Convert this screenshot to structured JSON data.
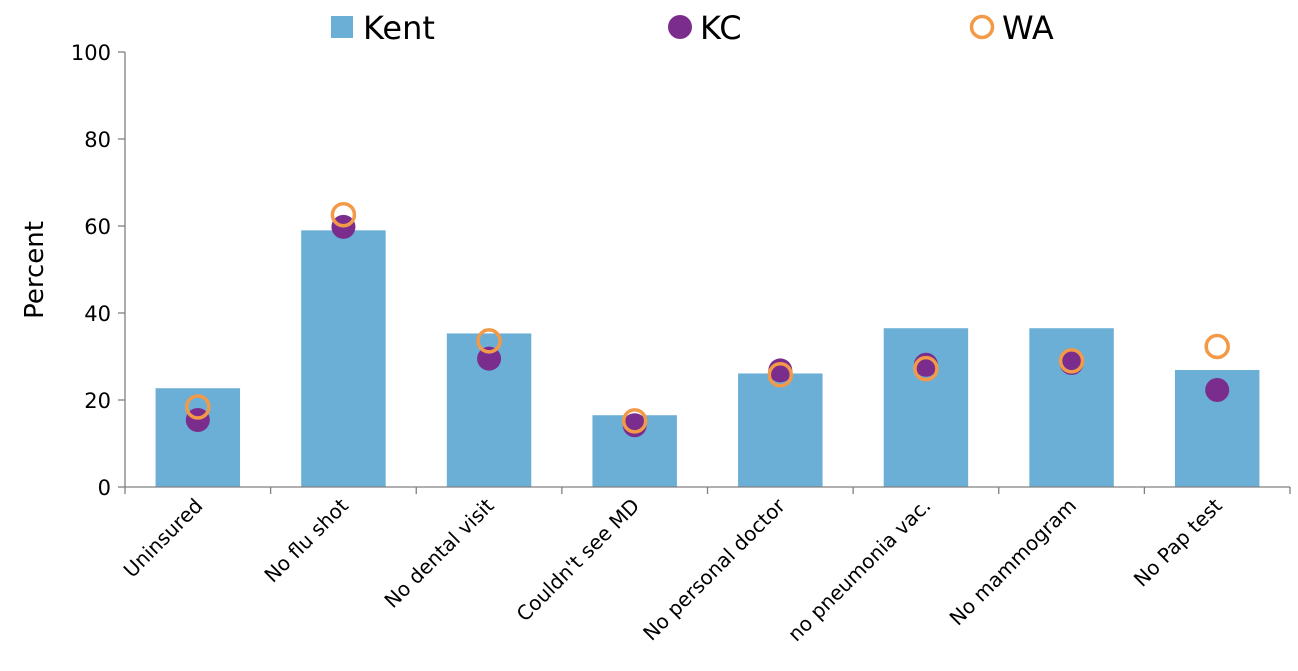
{
  "chart_data": {
    "type": "bar",
    "title": "",
    "xlabel": "",
    "ylabel": "Percent",
    "ylim": [
      0,
      100
    ],
    "yticks": [
      0,
      20,
      40,
      60,
      80,
      100
    ],
    "grid": false,
    "legend_position": "top",
    "categories": [
      "Uninsured",
      "No flu shot",
      "No dental visit",
      "Couldn't see MD",
      "No personal doctor",
      "no pneumonia vac.",
      "No mammogram",
      "No Pap test"
    ],
    "series": [
      {
        "name": "Kent",
        "kind": "bar",
        "color": "#6baed6",
        "values": [
          22.7,
          59,
          35.3,
          16.5,
          26.1,
          36.5,
          36.5,
          26.9
        ]
      },
      {
        "name": "KC",
        "kind": "marker-filled",
        "color": "#7b2d8e",
        "values": [
          15.4,
          59.8,
          29.5,
          14.2,
          26.8,
          28.1,
          28.5,
          22.3
        ]
      },
      {
        "name": "WA",
        "kind": "marker-hollow",
        "color": "#f39a48",
        "values": [
          18.4,
          62.6,
          33.6,
          15.2,
          25.8,
          27.2,
          29.0,
          32.3
        ]
      }
    ]
  }
}
